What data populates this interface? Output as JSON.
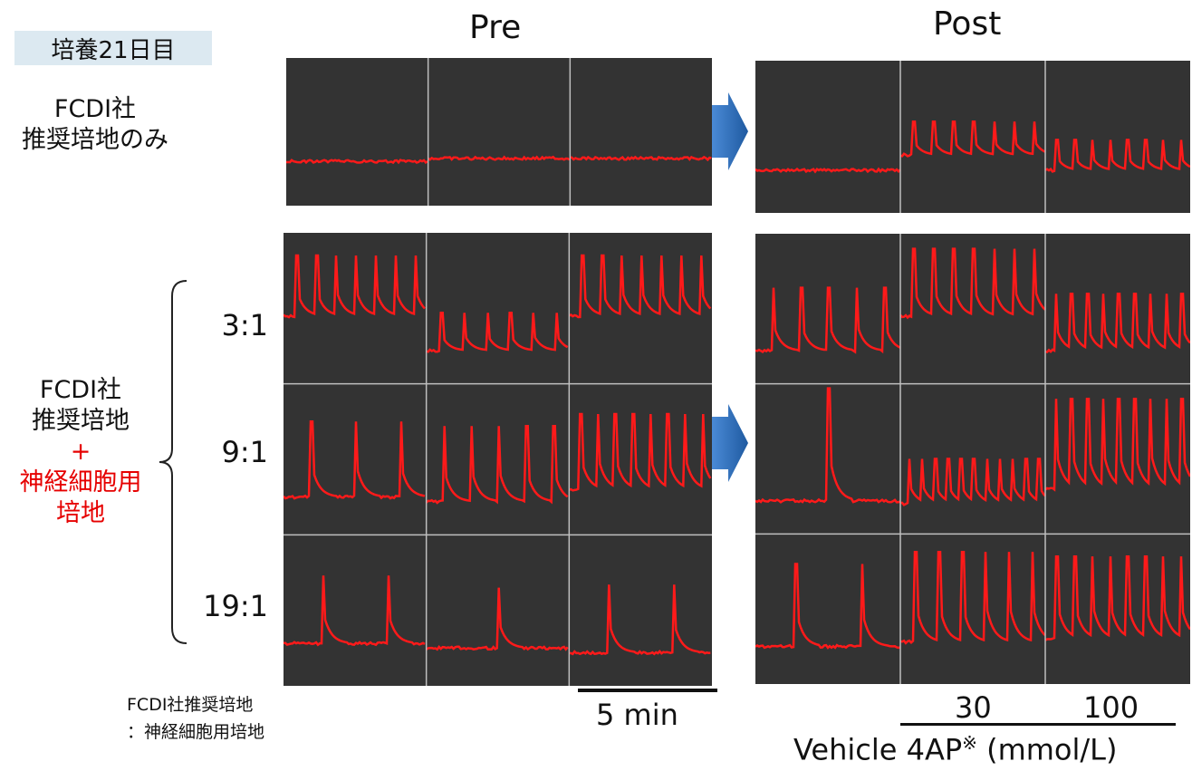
{
  "culture_day": "培養21日目",
  "headers": {
    "pre": "Pre",
    "post": "Post"
  },
  "row_labels": {
    "control": {
      "line1": "FCDI社",
      "line2": "推奨培地のみ"
    },
    "mixed": {
      "line1": "FCDI社",
      "line2": "推奨培地",
      "plus": "+",
      "line3": "神経細胞用",
      "line4": "培地"
    }
  },
  "ratios": [
    "3:1",
    "9:1",
    "19:1"
  ],
  "footnote": {
    "line1": "FCDI社推奨培地",
    "line2": "：神経細胞用培地"
  },
  "scale_bar": {
    "label": "5 min"
  },
  "post_axis": {
    "conc_30": "30",
    "conc_100": "100",
    "vehicle": "Vehicle",
    "drug": "4AP",
    "mark": "※",
    "unit": "(mmol/L)"
  },
  "colors": {
    "trace": "#ff1a1a",
    "panel_bg": "#333333",
    "grid": "#bfbfbf",
    "arrow": "#2e6fb6",
    "badge": "#dce9f1",
    "accent_text": "#e60000"
  },
  "traces": {
    "control_pre": [
      {
        "base": 0.7,
        "n": 0,
        "amp": 0.0
      },
      {
        "base": 0.68,
        "n": 0,
        "amp": 0.0
      },
      {
        "base": 0.68,
        "n": 0,
        "amp": 0.0
      }
    ],
    "control_post": [
      {
        "base": 0.72,
        "n": 0,
        "amp": 0.0
      },
      {
        "base": 0.62,
        "n": 7,
        "amp": 0.22
      },
      {
        "base": 0.72,
        "n": 8,
        "amp": 0.2
      }
    ],
    "r3_pre": [
      {
        "base": 0.55,
        "n": 7,
        "amp": 0.4
      },
      {
        "base": 0.78,
        "n": 6,
        "amp": 0.25
      },
      {
        "base": 0.55,
        "n": 7,
        "amp": 0.4
      }
    ],
    "r3_post": [
      {
        "base": 0.78,
        "n": 5,
        "amp": 0.42
      },
      {
        "base": 0.55,
        "n": 7,
        "amp": 0.45
      },
      {
        "base": 0.78,
        "n": 9,
        "amp": 0.38
      }
    ],
    "r9_pre": [
      {
        "base": 0.75,
        "n": 3,
        "amp": 0.5
      },
      {
        "base": 0.78,
        "n": 5,
        "amp": 0.5
      },
      {
        "base": 0.7,
        "n": 8,
        "amp": 0.5
      }
    ],
    "r9_post": [
      {
        "base": 0.78,
        "n": 1,
        "amp": 0.75
      },
      {
        "base": 0.8,
        "n": 11,
        "amp": 0.3
      },
      {
        "base": 0.7,
        "n": 9,
        "amp": 0.6
      }
    ],
    "r19_pre": [
      {
        "base": 0.72,
        "n": 2,
        "amp": 0.45
      },
      {
        "base": 0.75,
        "n": 1,
        "amp": 0.4
      },
      {
        "base": 0.78,
        "n": 2,
        "amp": 0.45
      }
    ],
    "r19_post": [
      {
        "base": 0.75,
        "n": 2,
        "amp": 0.55
      },
      {
        "base": 0.72,
        "n": 6,
        "amp": 0.6
      },
      {
        "base": 0.7,
        "n": 8,
        "amp": 0.55
      }
    ]
  }
}
